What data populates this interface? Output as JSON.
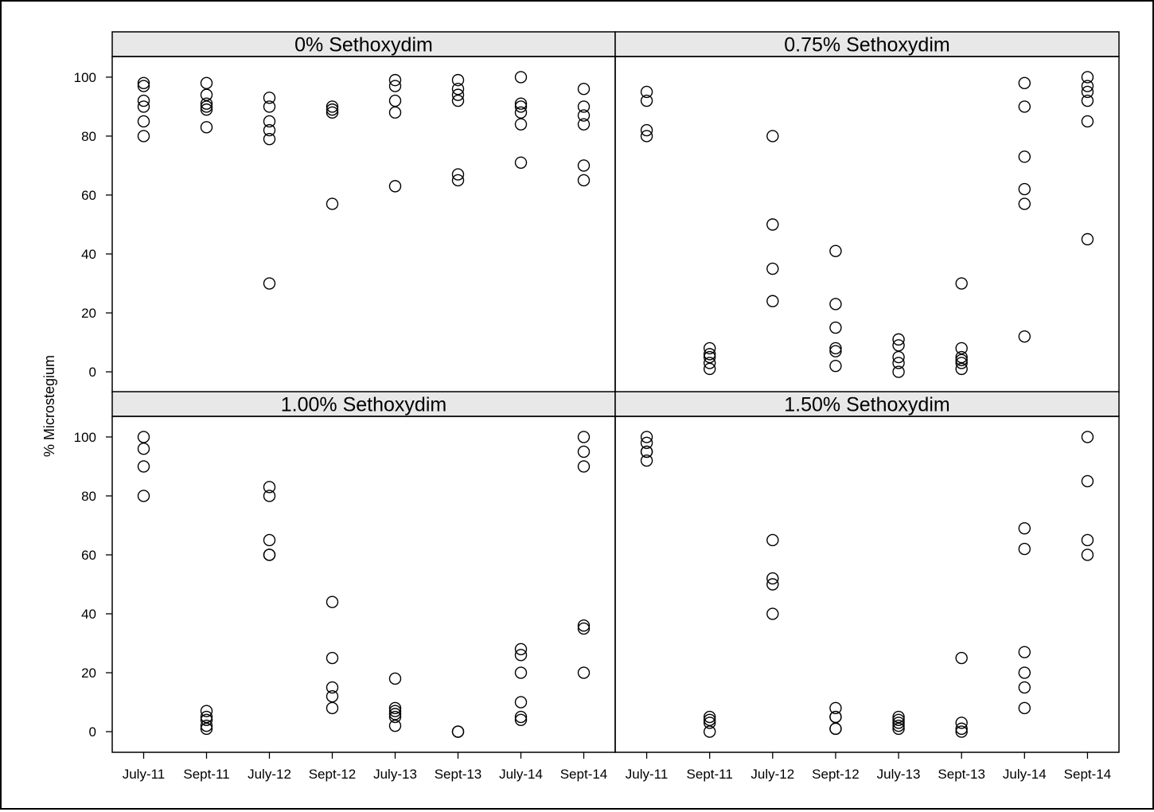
{
  "chart_data": {
    "type": "scatter",
    "ylabel": "% Microstegium",
    "xlabel": "",
    "categories": [
      "July-11",
      "Sept-11",
      "July-12",
      "Sept-12",
      "July-13",
      "Sept-13",
      "July-14",
      "Sept-14"
    ],
    "ylim": [
      -7,
      107
    ],
    "yticks": [
      0,
      20,
      40,
      60,
      80,
      100
    ],
    "grid": false,
    "legend": "none",
    "marker": "open-circle",
    "colors": {
      "marker_stroke": "#000000",
      "strip_fill": "#e8e8e8",
      "background": "#ffffff"
    },
    "panels": [
      {
        "title": "0%  Sethoxydim",
        "points": {
          "July-11": [
            98,
            97,
            92,
            90,
            85,
            80
          ],
          "Sept-11": [
            98,
            94,
            91,
            90,
            89,
            83
          ],
          "July-12": [
            93,
            90,
            85,
            82,
            79,
            30
          ],
          "Sept-12": [
            90,
            89,
            88,
            57
          ],
          "July-13": [
            99,
            97,
            92,
            88,
            63
          ],
          "Sept-13": [
            99,
            96,
            94,
            92,
            67,
            65
          ],
          "July-14": [
            100,
            91,
            90,
            88,
            84,
            71
          ],
          "Sept-14": [
            96,
            90,
            87,
            84,
            70,
            65
          ]
        }
      },
      {
        "title": "0.75%  Sethoxydim",
        "points": {
          "July-11": [
            95,
            92,
            82,
            80
          ],
          "Sept-11": [
            8,
            6,
            5,
            3,
            1
          ],
          "July-12": [
            80,
            50,
            35,
            24
          ],
          "Sept-12": [
            41,
            23,
            15,
            8,
            7,
            2
          ],
          "July-13": [
            11,
            9,
            5,
            3,
            0
          ],
          "Sept-13": [
            30,
            8,
            5,
            4,
            3,
            1
          ],
          "July-14": [
            98,
            90,
            73,
            62,
            57,
            12
          ],
          "Sept-14": [
            100,
            97,
            95,
            92,
            85,
            45
          ]
        }
      },
      {
        "title": "1.00%  Sethoxydim",
        "points": {
          "July-11": [
            100,
            96,
            90,
            80
          ],
          "Sept-11": [
            7,
            5,
            4,
            2,
            1
          ],
          "July-12": [
            83,
            80,
            65,
            60,
            60
          ],
          "Sept-12": [
            44,
            25,
            15,
            12,
            8
          ],
          "July-13": [
            18,
            8,
            7,
            6,
            5,
            2
          ],
          "Sept-13": [
            0,
            0
          ],
          "July-14": [
            28,
            26,
            20,
            10,
            5,
            4
          ],
          "Sept-14": [
            100,
            95,
            90,
            36,
            35,
            20
          ]
        }
      },
      {
        "title": "1.50%  Sethoxydim",
        "points": {
          "July-11": [
            100,
            98,
            95,
            95,
            92
          ],
          "Sept-11": [
            5,
            4,
            3,
            0
          ],
          "July-12": [
            65,
            52,
            50,
            40
          ],
          "Sept-12": [
            8,
            5,
            5,
            1,
            1
          ],
          "July-13": [
            5,
            4,
            3,
            2,
            1
          ],
          "Sept-13": [
            25,
            3,
            1,
            0
          ],
          "July-14": [
            69,
            62,
            27,
            20,
            15,
            8
          ],
          "Sept-14": [
            100,
            85,
            65,
            60
          ]
        }
      }
    ]
  }
}
